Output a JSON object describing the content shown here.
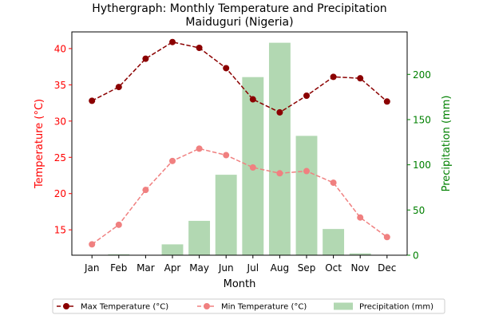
{
  "chart_data": {
    "type": "bar+line",
    "title_line1": "Hythergraph: Monthly Temperature and Precipitation",
    "title_line2": "Maiduguri (Nigeria)",
    "xlabel": "Month",
    "ylabel_left": "Temperature (°C)",
    "ylabel_right": "Precipitation (mm)",
    "categories": [
      "Jan",
      "Feb",
      "Mar",
      "Apr",
      "May",
      "Jun",
      "Jul",
      "Aug",
      "Sep",
      "Oct",
      "Nov",
      "Dec"
    ],
    "y_left_lim": [
      11.5,
      42.3
    ],
    "y_left_ticks": [
      15,
      20,
      25,
      30,
      35,
      40
    ],
    "y_right_lim": [
      0,
      247
    ],
    "y_right_ticks": [
      0,
      50,
      100,
      150,
      200
    ],
    "series": [
      {
        "name": "Max Temperature (°C)",
        "kind": "line",
        "axis": "left",
        "color": "#8b0000",
        "values": [
          32.8,
          34.7,
          38.6,
          40.9,
          40.1,
          37.3,
          33.0,
          31.2,
          33.5,
          36.1,
          35.9,
          32.7
        ]
      },
      {
        "name": "Min Temperature (°C)",
        "kind": "line",
        "axis": "left",
        "color": "#f08080",
        "values": [
          13.0,
          15.7,
          20.5,
          24.5,
          26.2,
          25.3,
          23.6,
          22.8,
          23.1,
          21.5,
          16.7,
          14.0
        ]
      },
      {
        "name": "Precipitation (mm)",
        "kind": "bar",
        "axis": "right",
        "color": "#b2d8b2",
        "values": [
          0,
          1,
          0,
          12,
          38,
          89,
          197,
          235,
          132,
          29,
          2,
          0
        ]
      }
    ],
    "colors": {
      "left_axis": "#ff0000",
      "right_axis": "#008000"
    },
    "legend_position": "bottom-center"
  }
}
